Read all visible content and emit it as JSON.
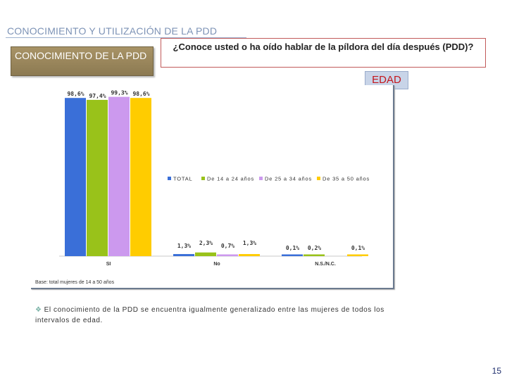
{
  "slide": {
    "heading": "CONOCIMIENTO Y UTILIZACIÓN DE LA PDD",
    "section_label": "CONOCIMIENTO DE LA PDD",
    "question": "¿Conoce usted o ha oído hablar de la píldora del día después (PDD)?",
    "segment_label": "EDAD",
    "base_note": "Base: total mujeres de 14 a 50 años",
    "bullet_text": "El conocimiento de la PDD se encuentra igualmente generalizado entre las mujeres de todos los intervalos de edad.",
    "bullet_icon": "diamond-bullet-icon",
    "page_number": "15"
  },
  "chart_data": {
    "type": "bar",
    "title": "",
    "xlabel": "",
    "ylabel": "",
    "ylim": [
      0,
      100
    ],
    "grid": false,
    "legend_position": "center",
    "categories": [
      "SI",
      "No",
      "N.S./N.C."
    ],
    "series": [
      {
        "name": "TOTAL",
        "color": "#3a6fd8",
        "values": [
          98.6,
          1.3,
          0.1
        ],
        "labels": [
          "98,6%",
          "1,3%",
          "0,1%"
        ]
      },
      {
        "name": "De 14 a 24 años",
        "color": "#99c21a",
        "values": [
          97.4,
          2.3,
          0.2
        ],
        "labels": [
          "97,4%",
          "2,3%",
          "0,2%"
        ]
      },
      {
        "name": "De 25 a 34 años",
        "color": "#cc99ee",
        "values": [
          99.3,
          0.7,
          0.0
        ],
        "labels": [
          "99,3%",
          "0,7%",
          ""
        ]
      },
      {
        "name": "De 35 a 50 años",
        "color": "#ffcc00",
        "values": [
          98.6,
          1.3,
          0.1
        ],
        "labels": [
          "98,6%",
          "1,3%",
          "0,1%"
        ]
      }
    ]
  }
}
